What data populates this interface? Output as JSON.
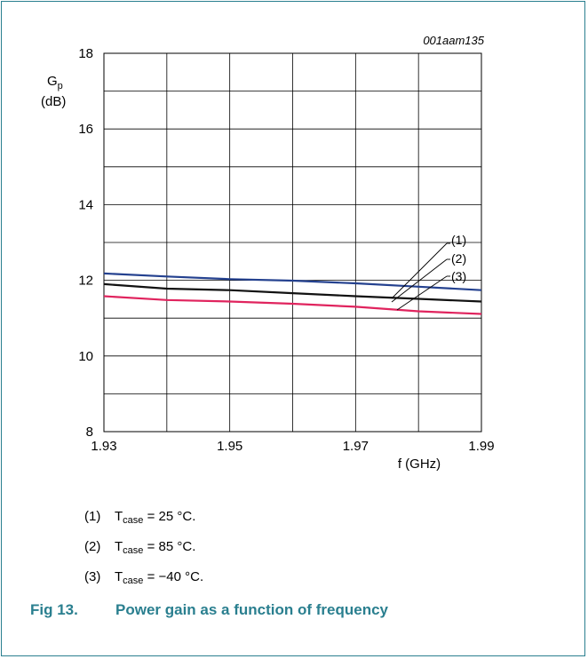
{
  "figure": {
    "id_code": "001aam135",
    "number_label": "Fig 13.",
    "title": "Power gain as a function of frequency"
  },
  "legend_notes": [
    {
      "num": "(1)",
      "sym": "T",
      "sub": "case",
      "rest": " = 25 °C."
    },
    {
      "num": "(2)",
      "sym": "T",
      "sub": "case",
      "rest": " = 85 °C."
    },
    {
      "num": "(3)",
      "sym": "T",
      "sub": "case",
      "rest": " = −40 °C."
    }
  ],
  "chart_data": {
    "type": "line",
    "ylabel_main": "G",
    "ylabel_sub": "p",
    "ylabel_unit": "(dB)",
    "xlabel": "f (GHz)",
    "xlim": [
      1.93,
      1.99
    ],
    "ylim": [
      8,
      18
    ],
    "xticks": [
      "1.93",
      "1.95",
      "1.97",
      "1.99"
    ],
    "yticks": [
      "8",
      "10",
      "12",
      "14",
      "16",
      "18"
    ],
    "grid": true,
    "series": [
      {
        "name": "(1)",
        "color": "#24418f",
        "x": [
          1.93,
          1.94,
          1.95,
          1.96,
          1.97,
          1.98,
          1.99
        ],
        "y": [
          12.18,
          12.1,
          12.03,
          11.99,
          11.92,
          11.83,
          11.74
        ]
      },
      {
        "name": "(2)",
        "color": "#111111",
        "x": [
          1.93,
          1.94,
          1.95,
          1.96,
          1.97,
          1.98,
          1.99
        ],
        "y": [
          11.9,
          11.78,
          11.74,
          11.66,
          11.58,
          11.51,
          11.44
        ]
      },
      {
        "name": "(3)",
        "color": "#e0245e",
        "x": [
          1.93,
          1.94,
          1.95,
          1.96,
          1.97,
          1.98,
          1.99
        ],
        "y": [
          11.58,
          11.48,
          11.44,
          11.38,
          11.3,
          11.18,
          11.11
        ]
      }
    ]
  }
}
